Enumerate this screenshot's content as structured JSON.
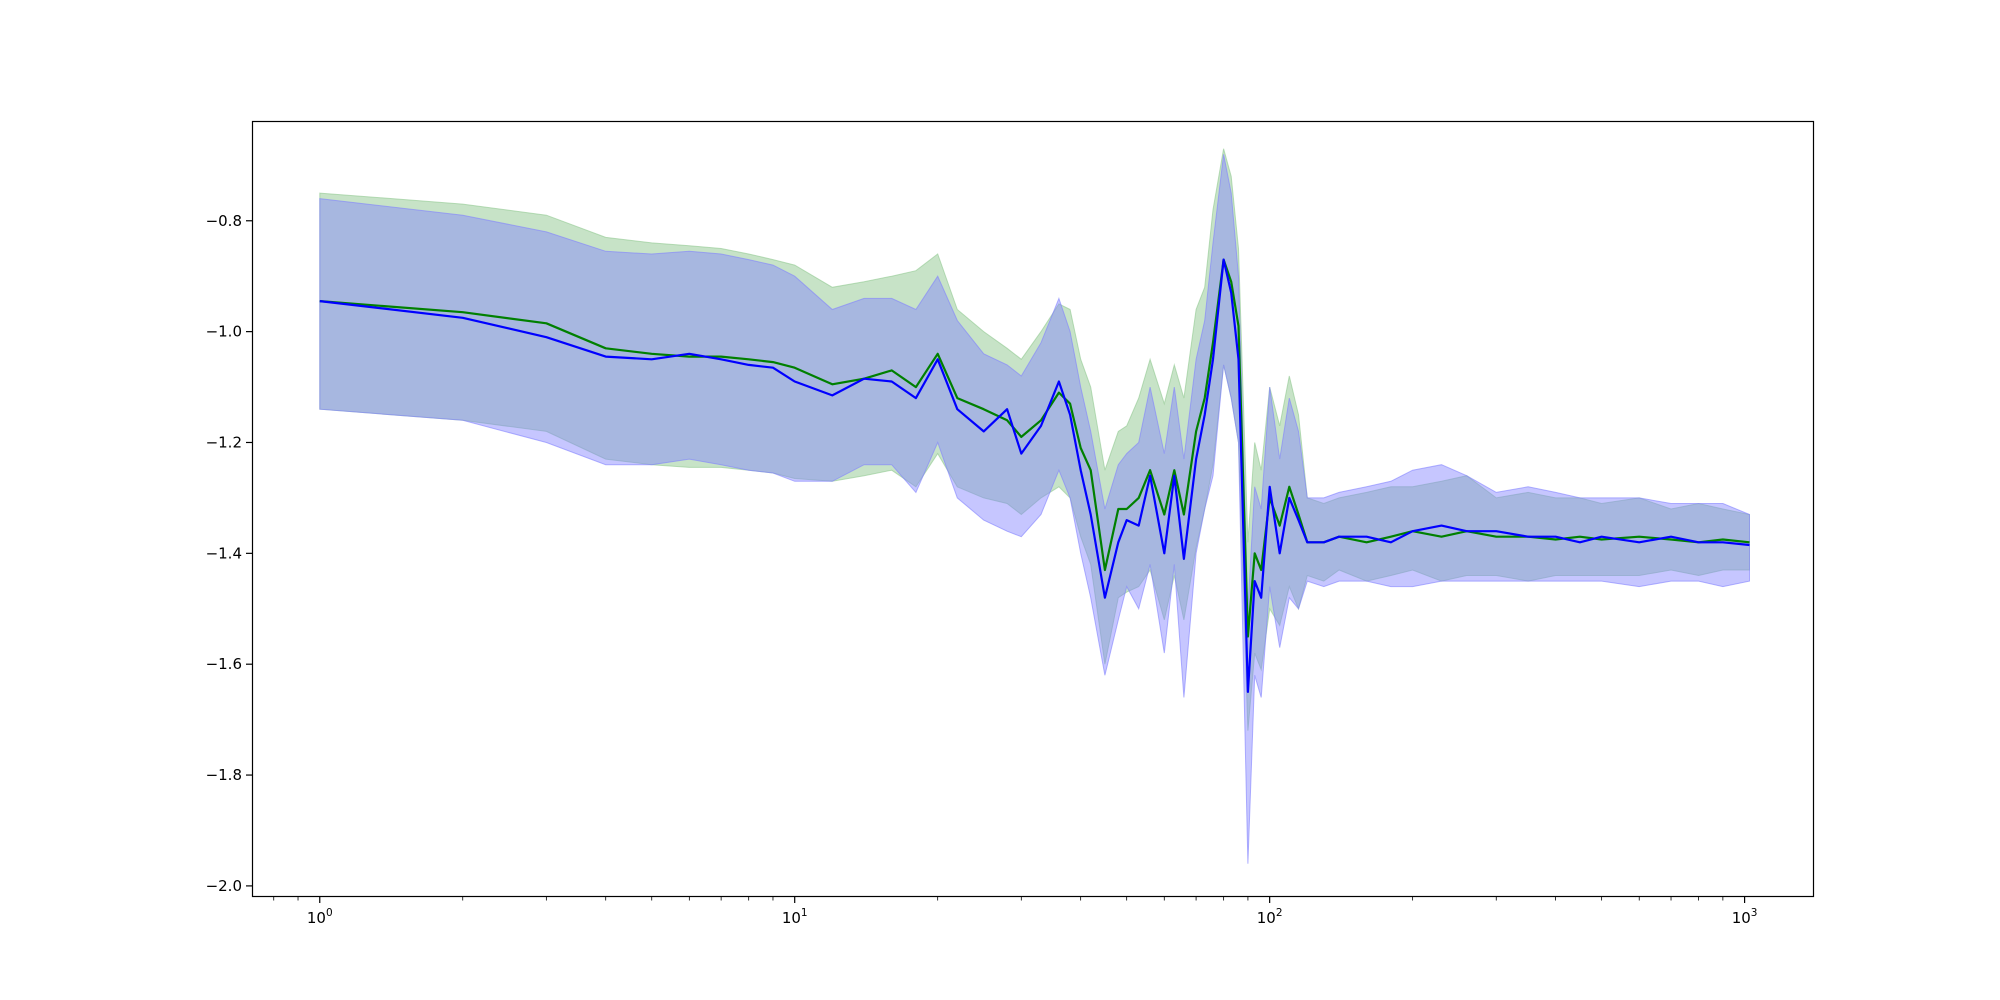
{
  "chart_data": {
    "type": "line",
    "title": "",
    "xlabel": "",
    "ylabel": "",
    "xscale": "log",
    "xlim": [
      0.72,
      1400
    ],
    "ylim": [
      -2.02,
      -0.62
    ],
    "grid": false,
    "legend": "none",
    "colors": {
      "series_a_line": "#008000",
      "series_a_band": "#8fc88f",
      "series_b_line": "#0000ff",
      "series_b_band": "#8080ff",
      "overlap_band": "#a1b5d6"
    },
    "x_ticks": [
      {
        "base": "10",
        "exp": "0",
        "value": 1
      },
      {
        "base": "10",
        "exp": "1",
        "value": 10
      },
      {
        "base": "10",
        "exp": "2",
        "value": 100
      },
      {
        "base": "10",
        "exp": "3",
        "value": 1000
      }
    ],
    "y_ticks": [
      {
        "label": "−0.8",
        "value": -0.8
      },
      {
        "label": "−1.0",
        "value": -1.0
      },
      {
        "label": "−1.2",
        "value": -1.2
      },
      {
        "label": "−1.4",
        "value": -1.4
      },
      {
        "label": "−1.6",
        "value": -1.6
      },
      {
        "label": "−1.8",
        "value": -1.8
      },
      {
        "label": "−2.0",
        "value": -2.0
      }
    ],
    "series": [
      {
        "color": "#008000",
        "band_color": "#8fc88f",
        "x": [
          1,
          2,
          3,
          4,
          5,
          6,
          7,
          8,
          9,
          10,
          12,
          14,
          16,
          18,
          20,
          22,
          25,
          28,
          30,
          33,
          36,
          38,
          40,
          42,
          45,
          48,
          50,
          53,
          56,
          60,
          63,
          66,
          70,
          73,
          76,
          80,
          83,
          86,
          90,
          93,
          96,
          100,
          105,
          110,
          115,
          120,
          130,
          140,
          160,
          180,
          200,
          230,
          260,
          300,
          350,
          400,
          450,
          500,
          600,
          700,
          800,
          900,
          1024
        ],
        "y": [
          -0.945,
          -0.965,
          -0.985,
          -1.03,
          -1.04,
          -1.045,
          -1.045,
          -1.05,
          -1.055,
          -1.065,
          -1.095,
          -1.085,
          -1.07,
          -1.1,
          -1.04,
          -1.12,
          -1.14,
          -1.16,
          -1.19,
          -1.16,
          -1.11,
          -1.13,
          -1.21,
          -1.25,
          -1.43,
          -1.32,
          -1.32,
          -1.3,
          -1.25,
          -1.33,
          -1.25,
          -1.33,
          -1.18,
          -1.12,
          -1.02,
          -0.87,
          -0.91,
          -0.99,
          -1.55,
          -1.4,
          -1.43,
          -1.3,
          -1.35,
          -1.28,
          -1.33,
          -1.38,
          -1.38,
          -1.37,
          -1.38,
          -1.37,
          -1.36,
          -1.37,
          -1.36,
          -1.37,
          -1.37,
          -1.375,
          -1.37,
          -1.375,
          -1.37,
          -1.375,
          -1.38,
          -1.375,
          -1.38
        ],
        "upper": [
          -0.75,
          -0.77,
          -0.79,
          -0.83,
          -0.84,
          -0.845,
          -0.85,
          -0.86,
          -0.87,
          -0.88,
          -0.92,
          -0.91,
          -0.9,
          -0.89,
          -0.86,
          -0.96,
          -1.0,
          -1.03,
          -1.05,
          -1.0,
          -0.95,
          -0.96,
          -1.05,
          -1.1,
          -1.25,
          -1.18,
          -1.17,
          -1.12,
          -1.05,
          -1.13,
          -1.06,
          -1.12,
          -0.96,
          -0.92,
          -0.78,
          -0.67,
          -0.72,
          -0.85,
          -1.38,
          -1.2,
          -1.25,
          -1.1,
          -1.17,
          -1.08,
          -1.15,
          -1.3,
          -1.31,
          -1.3,
          -1.29,
          -1.28,
          -1.28,
          -1.27,
          -1.26,
          -1.3,
          -1.29,
          -1.3,
          -1.3,
          -1.31,
          -1.3,
          -1.32,
          -1.31,
          -1.32,
          -1.33
        ],
        "lower": [
          -1.14,
          -1.16,
          -1.18,
          -1.23,
          -1.24,
          -1.245,
          -1.245,
          -1.25,
          -1.255,
          -1.265,
          -1.27,
          -1.26,
          -1.25,
          -1.28,
          -1.22,
          -1.28,
          -1.3,
          -1.31,
          -1.33,
          -1.3,
          -1.28,
          -1.3,
          -1.37,
          -1.42,
          -1.6,
          -1.48,
          -1.47,
          -1.46,
          -1.43,
          -1.52,
          -1.44,
          -1.52,
          -1.39,
          -1.32,
          -1.24,
          -1.06,
          -1.12,
          -1.2,
          -1.72,
          -1.58,
          -1.61,
          -1.5,
          -1.53,
          -1.46,
          -1.5,
          -1.44,
          -1.45,
          -1.43,
          -1.45,
          -1.44,
          -1.43,
          -1.45,
          -1.44,
          -1.44,
          -1.45,
          -1.44,
          -1.44,
          -1.44,
          -1.44,
          -1.43,
          -1.44,
          -1.43,
          -1.43
        ]
      },
      {
        "color": "#0000ff",
        "band_color": "#8080ff",
        "x": [
          1,
          2,
          3,
          4,
          5,
          6,
          7,
          8,
          9,
          10,
          12,
          14,
          16,
          18,
          20,
          22,
          25,
          28,
          30,
          33,
          36,
          38,
          40,
          42,
          45,
          48,
          50,
          53,
          56,
          60,
          63,
          66,
          70,
          73,
          76,
          80,
          83,
          86,
          90,
          93,
          96,
          100,
          105,
          110,
          115,
          120,
          130,
          140,
          160,
          180,
          200,
          230,
          260,
          300,
          350,
          400,
          450,
          500,
          600,
          700,
          800,
          900,
          1024
        ],
        "y": [
          -0.945,
          -0.975,
          -1.01,
          -1.045,
          -1.05,
          -1.04,
          -1.05,
          -1.06,
          -1.065,
          -1.09,
          -1.115,
          -1.085,
          -1.09,
          -1.12,
          -1.05,
          -1.14,
          -1.18,
          -1.14,
          -1.22,
          -1.17,
          -1.09,
          -1.15,
          -1.25,
          -1.33,
          -1.48,
          -1.38,
          -1.34,
          -1.35,
          -1.26,
          -1.4,
          -1.26,
          -1.41,
          -1.23,
          -1.15,
          -1.05,
          -0.87,
          -0.93,
          -1.05,
          -1.65,
          -1.45,
          -1.48,
          -1.28,
          -1.4,
          -1.3,
          -1.34,
          -1.38,
          -1.38,
          -1.37,
          -1.37,
          -1.38,
          -1.36,
          -1.35,
          -1.36,
          -1.36,
          -1.37,
          -1.37,
          -1.38,
          -1.37,
          -1.38,
          -1.37,
          -1.38,
          -1.38,
          -1.385
        ],
        "upper": [
          -0.76,
          -0.79,
          -0.82,
          -0.855,
          -0.86,
          -0.855,
          -0.86,
          -0.87,
          -0.88,
          -0.9,
          -0.96,
          -0.94,
          -0.94,
          -0.96,
          -0.9,
          -0.98,
          -1.04,
          -1.06,
          -1.08,
          -1.02,
          -0.94,
          -1.0,
          -1.1,
          -1.18,
          -1.32,
          -1.24,
          -1.22,
          -1.2,
          -1.1,
          -1.22,
          -1.1,
          -1.23,
          -1.05,
          -0.98,
          -0.84,
          -0.68,
          -0.75,
          -0.9,
          -1.5,
          -1.28,
          -1.32,
          -1.1,
          -1.23,
          -1.12,
          -1.18,
          -1.3,
          -1.3,
          -1.29,
          -1.28,
          -1.27,
          -1.25,
          -1.24,
          -1.26,
          -1.29,
          -1.28,
          -1.29,
          -1.3,
          -1.3,
          -1.3,
          -1.31,
          -1.31,
          -1.31,
          -1.33
        ],
        "lower": [
          -1.14,
          -1.16,
          -1.2,
          -1.24,
          -1.24,
          -1.23,
          -1.24,
          -1.25,
          -1.255,
          -1.27,
          -1.27,
          -1.24,
          -1.24,
          -1.29,
          -1.2,
          -1.3,
          -1.34,
          -1.36,
          -1.37,
          -1.33,
          -1.25,
          -1.3,
          -1.4,
          -1.48,
          -1.62,
          -1.52,
          -1.46,
          -1.5,
          -1.42,
          -1.58,
          -1.42,
          -1.66,
          -1.4,
          -1.32,
          -1.26,
          -1.06,
          -1.12,
          -1.2,
          -1.96,
          -1.62,
          -1.66,
          -1.46,
          -1.57,
          -1.48,
          -1.5,
          -1.45,
          -1.46,
          -1.45,
          -1.45,
          -1.46,
          -1.46,
          -1.45,
          -1.45,
          -1.45,
          -1.45,
          -1.45,
          -1.45,
          -1.45,
          -1.46,
          -1.45,
          -1.45,
          -1.46,
          -1.45
        ]
      }
    ]
  }
}
